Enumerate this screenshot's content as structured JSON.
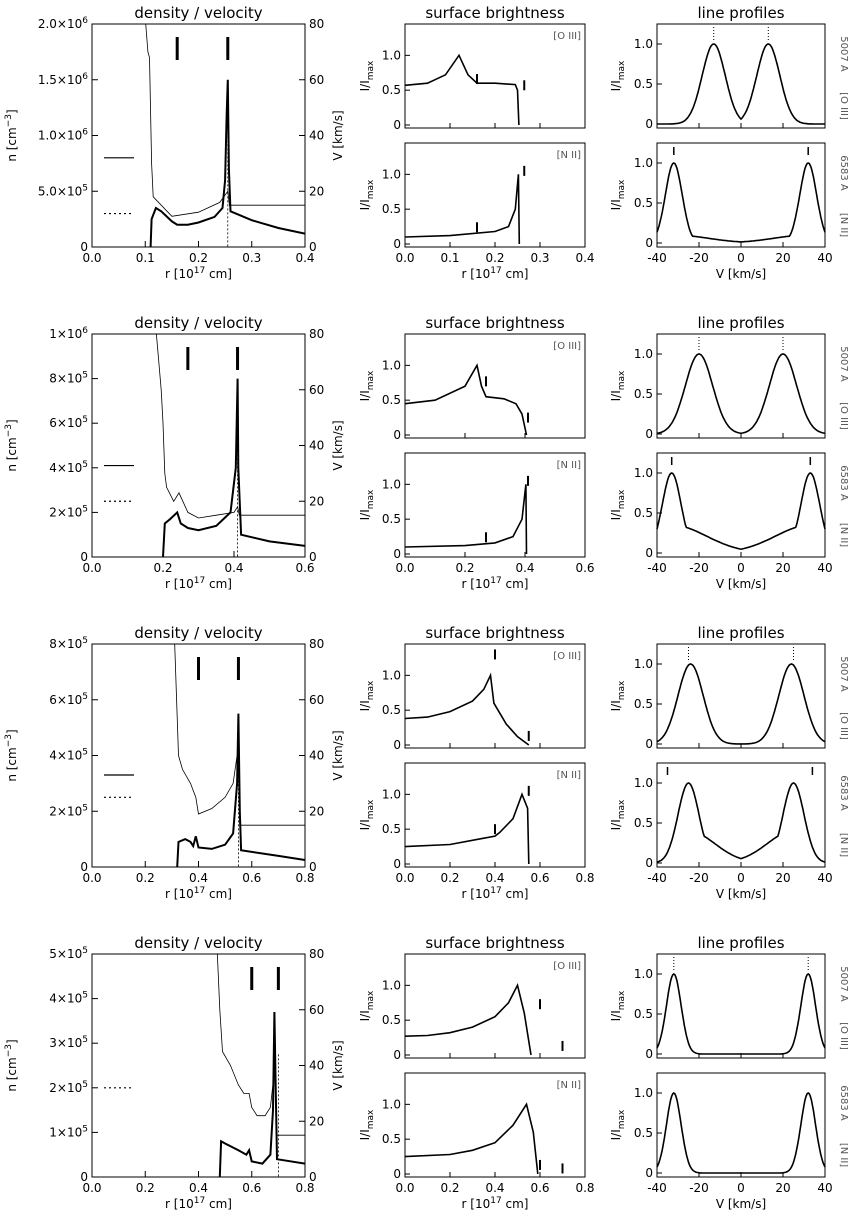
{
  "titles": {
    "density": "density / velocity",
    "surface": "surface brightness",
    "profiles": "line profiles"
  },
  "labels": {
    "n_axis": "n [cm",
    "n_exp": "−3",
    "n_close": "]",
    "v_axis": "V [km/s]",
    "r_axis": "r [10",
    "r_exp": "17",
    "r_close": " cm]",
    "i_axis": "I/I",
    "i_sub": "max",
    "oiii": "[O III]",
    "nii": "[N II]",
    "w5007": "5007 Å",
    "w6583": "6583 Å",
    "vkms": "V [km/s]"
  },
  "chart_data": [
    {
      "row": 0,
      "type": "line",
      "density": {
        "n_scale": 1000000,
        "n_max": 2.0,
        "n_ticks": [
          [
            0,
            "0"
          ],
          [
            0.5,
            "5.0×10^5"
          ],
          [
            1.0,
            "1.0×10^6"
          ],
          [
            1.5,
            "1.5×10^6"
          ],
          [
            2.0,
            "2.0×10^6"
          ]
        ],
        "r_max": 0.4,
        "r_ticks": [
          0,
          0.1,
          0.2,
          0.3,
          0.4
        ],
        "markers": [
          0.16,
          0.255
        ],
        "ref_lines": [
          {
            "style": "solid",
            "n": 0.8
          },
          {
            "style": "dotted",
            "n": 0.3
          }
        ],
        "n_profile": [
          [
            0.11,
            0
          ],
          [
            0.112,
            0.25
          ],
          [
            0.12,
            0.35
          ],
          [
            0.13,
            0.32
          ],
          [
            0.15,
            0.23
          ],
          [
            0.16,
            0.2
          ],
          [
            0.18,
            0.2
          ],
          [
            0.2,
            0.22
          ],
          [
            0.23,
            0.27
          ],
          [
            0.245,
            0.35
          ],
          [
            0.25,
            0.6
          ],
          [
            0.253,
            1.2
          ],
          [
            0.255,
            1.5
          ],
          [
            0.257,
            0.7
          ],
          [
            0.26,
            0.32
          ],
          [
            0.3,
            0.24
          ],
          [
            0.35,
            0.17
          ],
          [
            0.4,
            0.12
          ]
        ],
        "v_profile": [
          [
            0.1,
            82
          ],
          [
            0.105,
            70
          ],
          [
            0.108,
            68
          ],
          [
            0.112,
            30
          ],
          [
            0.115,
            18
          ],
          [
            0.15,
            11
          ],
          [
            0.2,
            12.5
          ],
          [
            0.24,
            16
          ],
          [
            0.255,
            20
          ],
          [
            0.258,
            15
          ],
          [
            0.26,
            15
          ],
          [
            0.4,
            15
          ]
        ]
      },
      "surface": {
        "r_max": 0.4,
        "r_ticks": [
          0,
          0.1,
          0.2,
          0.3,
          0.4
        ],
        "oiii": [
          [
            0,
            0.57
          ],
          [
            0.05,
            0.6
          ],
          [
            0.09,
            0.72
          ],
          [
            0.12,
            1.0
          ],
          [
            0.14,
            0.72
          ],
          [
            0.16,
            0.6
          ],
          [
            0.2,
            0.6
          ],
          [
            0.245,
            0.58
          ],
          [
            0.25,
            0.5
          ],
          [
            0.253,
            0
          ]
        ],
        "oiii_marks": [
          [
            0.16,
            0.66
          ],
          [
            0.265,
            0.57
          ]
        ],
        "nii": [
          [
            0,
            0.1
          ],
          [
            0.1,
            0.12
          ],
          [
            0.2,
            0.18
          ],
          [
            0.23,
            0.25
          ],
          [
            0.245,
            0.5
          ],
          [
            0.252,
            1.0
          ],
          [
            0.254,
            0
          ]
        ],
        "nii_marks": [
          [
            0.16,
            0.24
          ],
          [
            0.265,
            1.05
          ]
        ]
      },
      "profiles": {
        "oiii": {
          "centers": [
            -13,
            13
          ],
          "width": 5.5
        },
        "nii": {
          "centers": [
            -32,
            32
          ],
          "width": 4,
          "wing": 0.1
        },
        "oiii_ticks": [
          -13,
          13
        ],
        "nii_marks": [
          -32,
          32
        ]
      }
    },
    {
      "row": 1,
      "type": "line",
      "density": {
        "n_scale": 1000000,
        "n_max": 1.0,
        "n_ticks": [
          [
            0,
            "0"
          ],
          [
            0.2,
            "2×10^5"
          ],
          [
            0.4,
            "4×10^5"
          ],
          [
            0.6,
            "6×10^5"
          ],
          [
            0.8,
            "8×10^5"
          ],
          [
            1.0,
            "1×10^6"
          ]
        ],
        "r_max": 0.6,
        "r_ticks": [
          0,
          0.2,
          0.4,
          0.6
        ],
        "markers": [
          0.27,
          0.41
        ],
        "ref_lines": [
          {
            "style": "solid",
            "n": 0.41
          },
          {
            "style": "dotted",
            "n": 0.25
          }
        ],
        "n_profile": [
          [
            0.2,
            0
          ],
          [
            0.205,
            0.15
          ],
          [
            0.22,
            0.17
          ],
          [
            0.24,
            0.2
          ],
          [
            0.25,
            0.15
          ],
          [
            0.27,
            0.13
          ],
          [
            0.3,
            0.12
          ],
          [
            0.35,
            0.14
          ],
          [
            0.39,
            0.2
          ],
          [
            0.405,
            0.4
          ],
          [
            0.41,
            0.8
          ],
          [
            0.412,
            0.4
          ],
          [
            0.42,
            0.1
          ],
          [
            0.5,
            0.07
          ],
          [
            0.6,
            0.05
          ]
        ],
        "v_profile": [
          [
            0.18,
            82
          ],
          [
            0.195,
            60
          ],
          [
            0.2,
            48
          ],
          [
            0.205,
            30
          ],
          [
            0.21,
            25
          ],
          [
            0.23,
            20
          ],
          [
            0.245,
            23
          ],
          [
            0.27,
            16
          ],
          [
            0.3,
            14
          ],
          [
            0.35,
            15
          ],
          [
            0.4,
            16
          ],
          [
            0.41,
            18
          ],
          [
            0.415,
            15
          ],
          [
            0.6,
            15
          ]
        ]
      },
      "surface": {
        "r_max": 0.6,
        "r_ticks": [
          0,
          0.2,
          0.4,
          0.6
        ],
        "oiii": [
          [
            0,
            0.45
          ],
          [
            0.1,
            0.5
          ],
          [
            0.2,
            0.7
          ],
          [
            0.24,
            1.0
          ],
          [
            0.255,
            0.7
          ],
          [
            0.27,
            0.55
          ],
          [
            0.33,
            0.52
          ],
          [
            0.37,
            0.45
          ],
          [
            0.39,
            0.3
          ],
          [
            0.405,
            0
          ]
        ],
        "oiii_marks": [
          [
            0.27,
            0.77
          ],
          [
            0.41,
            0.25
          ]
        ],
        "nii": [
          [
            0,
            0.1
          ],
          [
            0.2,
            0.12
          ],
          [
            0.3,
            0.16
          ],
          [
            0.36,
            0.25
          ],
          [
            0.39,
            0.5
          ],
          [
            0.403,
            1.0
          ],
          [
            0.405,
            0
          ]
        ],
        "nii_marks": [
          [
            0.27,
            0.24
          ],
          [
            0.41,
            1.05
          ]
        ]
      },
      "profiles": {
        "oiii": {
          "centers": [
            -20,
            20
          ],
          "width": 6.5
        },
        "nii": {
          "centers": [
            -33,
            33
          ],
          "width": 4.5,
          "wing": 0.35
        },
        "oiii_ticks": [
          -20,
          20
        ],
        "nii_marks": [
          -33,
          33
        ]
      }
    },
    {
      "row": 2,
      "type": "line",
      "density": {
        "n_scale": 100000,
        "n_max": 8.0,
        "n_ticks": [
          [
            0,
            "0"
          ],
          [
            2,
            "2×10^5"
          ],
          [
            4,
            "4×10^5"
          ],
          [
            6,
            "6×10^5"
          ],
          [
            8,
            "8×10^5"
          ]
        ],
        "r_max": 0.8,
        "r_ticks": [
          0,
          0.2,
          0.4,
          0.6,
          0.8
        ],
        "markers": [
          0.4,
          0.55
        ],
        "ref_lines": [
          {
            "style": "solid",
            "n": 3.3
          },
          {
            "style": "dotted",
            "n": 2.5
          }
        ],
        "n_profile": [
          [
            0.32,
            0
          ],
          [
            0.325,
            0.9
          ],
          [
            0.35,
            1.0
          ],
          [
            0.37,
            0.9
          ],
          [
            0.38,
            0.75
          ],
          [
            0.39,
            1.1
          ],
          [
            0.4,
            0.7
          ],
          [
            0.45,
            0.65
          ],
          [
            0.5,
            0.8
          ],
          [
            0.53,
            1.2
          ],
          [
            0.545,
            3.0
          ],
          [
            0.55,
            5.5
          ],
          [
            0.555,
            2.0
          ],
          [
            0.56,
            0.6
          ],
          [
            0.7,
            0.4
          ],
          [
            0.8,
            0.25
          ]
        ],
        "v_profile": [
          [
            0.31,
            82
          ],
          [
            0.325,
            40
          ],
          [
            0.34,
            35
          ],
          [
            0.37,
            30
          ],
          [
            0.39,
            25
          ],
          [
            0.4,
            19
          ],
          [
            0.45,
            21
          ],
          [
            0.5,
            25
          ],
          [
            0.53,
            30
          ],
          [
            0.545,
            40
          ],
          [
            0.55,
            35
          ],
          [
            0.555,
            15
          ],
          [
            0.8,
            15
          ]
        ]
      },
      "surface": {
        "r_max": 0.8,
        "r_ticks": [
          0,
          0.2,
          0.4,
          0.6,
          0.8
        ],
        "oiii": [
          [
            0,
            0.38
          ],
          [
            0.1,
            0.4
          ],
          [
            0.2,
            0.48
          ],
          [
            0.3,
            0.63
          ],
          [
            0.35,
            0.8
          ],
          [
            0.38,
            1.0
          ],
          [
            0.395,
            0.6
          ],
          [
            0.45,
            0.3
          ],
          [
            0.5,
            0.12
          ],
          [
            0.55,
            0
          ]
        ],
        "oiii_marks": [
          [
            0.4,
            1.3
          ],
          [
            0.55,
            0.13
          ]
        ],
        "nii": [
          [
            0,
            0.25
          ],
          [
            0.2,
            0.28
          ],
          [
            0.35,
            0.37
          ],
          [
            0.4,
            0.4
          ],
          [
            0.42,
            0.45
          ],
          [
            0.48,
            0.65
          ],
          [
            0.52,
            1.0
          ],
          [
            0.545,
            0.8
          ],
          [
            0.55,
            0
          ]
        ],
        "nii_marks": [
          [
            0.4,
            0.5
          ],
          [
            0.55,
            1.05
          ]
        ]
      },
      "profiles": {
        "oiii": {
          "centers": [
            -24,
            24
          ],
          "width": 6,
          "shoulder": 0.6
        },
        "nii": {
          "centers": [
            -25,
            25
          ],
          "width": 5,
          "wing": 0.4
        },
        "oiii_ticks": [
          -25,
          25
        ],
        "nii_marks": [
          -35,
          34
        ]
      }
    },
    {
      "row": 3,
      "type": "line",
      "density": {
        "n_scale": 100000,
        "n_max": 5.0,
        "n_ticks": [
          [
            0,
            "0"
          ],
          [
            1,
            "1×10^5"
          ],
          [
            2,
            "2×10^5"
          ],
          [
            3,
            "3×10^5"
          ],
          [
            4,
            "4×10^5"
          ],
          [
            5,
            "5×10^5"
          ]
        ],
        "r_max": 0.8,
        "r_ticks": [
          0,
          0.2,
          0.4,
          0.6,
          0.8
        ],
        "markers": [
          0.6,
          0.7
        ],
        "ref_lines": [
          {
            "style": "dotted",
            "n": 2.0
          }
        ],
        "n_profile": [
          [
            0.48,
            0
          ],
          [
            0.485,
            0.8
          ],
          [
            0.5,
            0.75
          ],
          [
            0.55,
            0.6
          ],
          [
            0.58,
            0.5
          ],
          [
            0.59,
            0.6
          ],
          [
            0.6,
            0.35
          ],
          [
            0.64,
            0.3
          ],
          [
            0.67,
            0.5
          ],
          [
            0.68,
            1.5
          ],
          [
            0.685,
            3.7
          ],
          [
            0.69,
            2.0
          ],
          [
            0.695,
            0.4
          ],
          [
            0.8,
            0.3
          ]
        ],
        "v_profile": [
          [
            0.47,
            82
          ],
          [
            0.48,
            60
          ],
          [
            0.49,
            45
          ],
          [
            0.52,
            40
          ],
          [
            0.55,
            33
          ],
          [
            0.57,
            30
          ],
          [
            0.59,
            30
          ],
          [
            0.6,
            25
          ],
          [
            0.62,
            22
          ],
          [
            0.65,
            22
          ],
          [
            0.67,
            25
          ],
          [
            0.685,
            38
          ],
          [
            0.69,
            30
          ],
          [
            0.695,
            15
          ],
          [
            0.8,
            15
          ]
        ]
      },
      "surface": {
        "r_max": 0.8,
        "r_ticks": [
          0,
          0.2,
          0.4,
          0.6,
          0.8
        ],
        "oiii": [
          [
            0,
            0.27
          ],
          [
            0.1,
            0.28
          ],
          [
            0.2,
            0.32
          ],
          [
            0.3,
            0.4
          ],
          [
            0.4,
            0.55
          ],
          [
            0.46,
            0.75
          ],
          [
            0.5,
            1.0
          ],
          [
            0.53,
            0.6
          ],
          [
            0.56,
            0
          ]
        ],
        "oiii_marks": [
          [
            0.6,
            0.73
          ],
          [
            0.7,
            0.13
          ]
        ],
        "nii": [
          [
            0,
            0.25
          ],
          [
            0.2,
            0.28
          ],
          [
            0.3,
            0.34
          ],
          [
            0.4,
            0.45
          ],
          [
            0.48,
            0.7
          ],
          [
            0.54,
            1.0
          ],
          [
            0.57,
            0.6
          ],
          [
            0.59,
            0
          ]
        ],
        "nii_marks": [
          [
            0.6,
            0.13
          ],
          [
            0.7,
            0.08
          ]
        ]
      },
      "profiles": {
        "oiii": {
          "centers": [
            -32,
            32
          ],
          "width": 3.5
        },
        "nii": {
          "centers": [
            -32,
            32
          ],
          "width": 3.5,
          "wing": 0
        },
        "oiii_ticks": [
          -32,
          32
        ],
        "nii_marks": []
      }
    }
  ]
}
